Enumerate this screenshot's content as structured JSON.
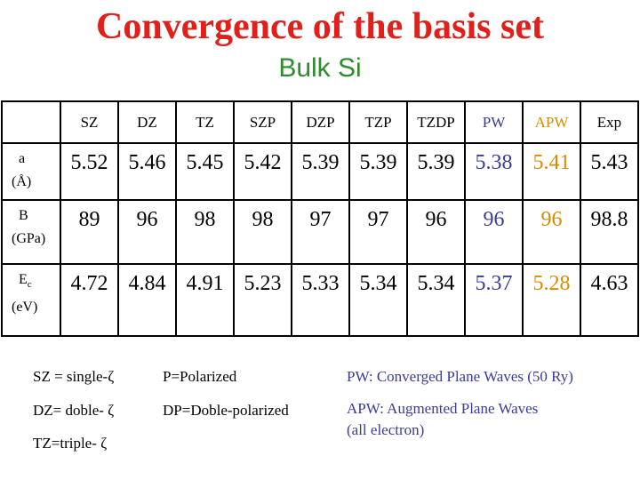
{
  "header": {
    "title": "Convergence of the basis set",
    "subtitle": "Bulk Si"
  },
  "table": {
    "columns": [
      "SZ",
      "DZ",
      "TZ",
      "SZP",
      "DZP",
      "TZP",
      "TZDP",
      "PW",
      "APW",
      "Exp"
    ],
    "rows": [
      {
        "label": "a",
        "unit": "(Å)",
        "values": [
          5.52,
          5.46,
          5.45,
          5.42,
          5.39,
          5.39,
          5.39,
          5.38,
          5.41,
          5.43
        ]
      },
      {
        "label": "B",
        "unit": "(GPa)",
        "values": [
          89,
          96,
          98,
          98,
          97,
          97,
          96,
          96,
          96,
          98.8
        ]
      },
      {
        "label": "E",
        "label_sub": "c",
        "unit": "(eV)",
        "values": [
          4.72,
          4.84,
          4.91,
          5.23,
          5.33,
          5.34,
          5.34,
          5.37,
          5.28,
          4.63
        ]
      }
    ]
  },
  "notes": {
    "left": [
      "SZ = single-ζ",
      "DZ= doble- ζ",
      "TZ=triple- ζ"
    ],
    "middle": [
      "P=Polarized",
      "DP=Doble-polarized"
    ],
    "right": [
      "PW: Converged Plane Waves (50 Ry)",
      "APW: Augmented Plane Waves",
      "(all electron)"
    ]
  }
}
